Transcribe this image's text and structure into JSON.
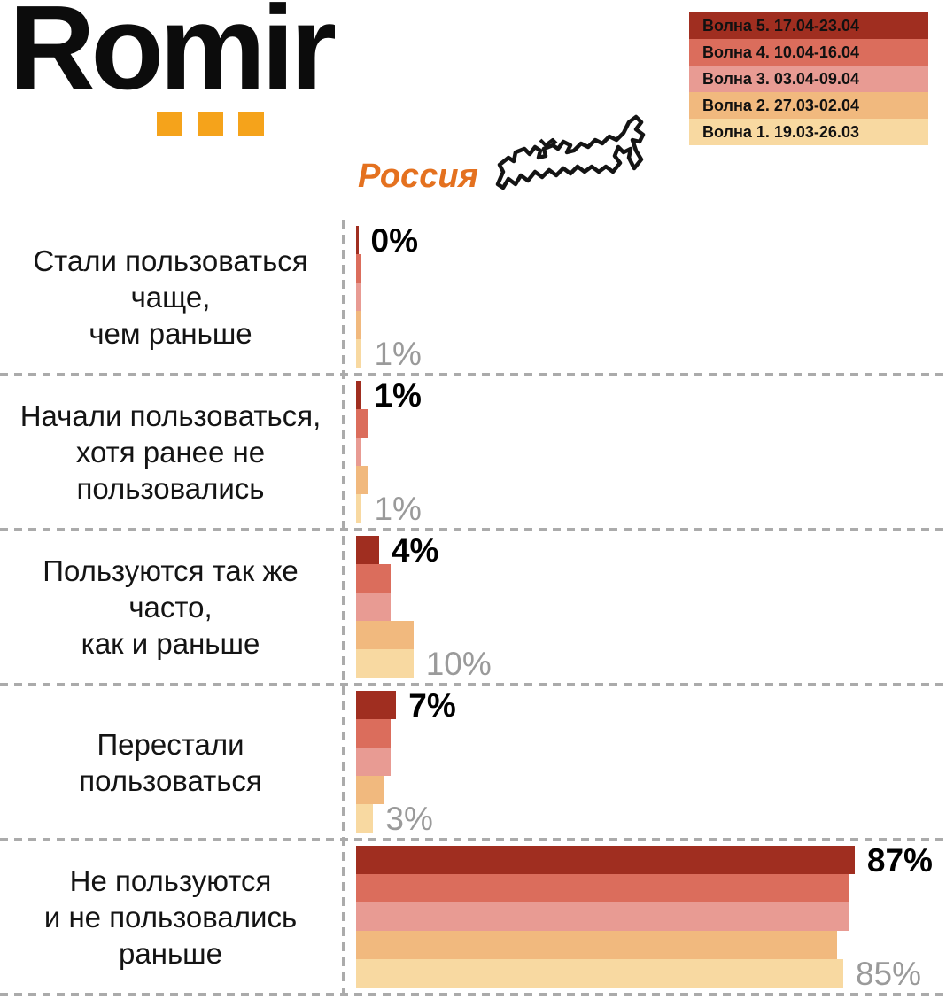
{
  "logo": {
    "text": "Romir",
    "dots_color": "#f5a31b"
  },
  "region_label": "Россия",
  "legend": {
    "items": [
      {
        "label": "Волна 5. 17.04-23.04",
        "color": "#a02e20"
      },
      {
        "label": "Волна 4. 10.04-16.04",
        "color": "#db6d5c"
      },
      {
        "label": "Волна 3. 03.04-09.04",
        "color": "#e89b93"
      },
      {
        "label": "Волна 2. 27.03-02.04",
        "color": "#f1b97e"
      },
      {
        "label": "Волна 1. 19.03-26.03",
        "color": "#f8d9a1"
      }
    ]
  },
  "chart_data": {
    "type": "bar",
    "orientation": "horizontal",
    "unit": "%",
    "xlim": [
      0,
      100
    ],
    "series_top_to_bottom": [
      {
        "name": "Волна 5. 17.04-23.04",
        "color": "#a02e20"
      },
      {
        "name": "Волна 4. 10.04-16.04",
        "color": "#db6d5c"
      },
      {
        "name": "Волна 3. 03.04-09.04",
        "color": "#e89b93"
      },
      {
        "name": "Волна 2. 27.03-02.04",
        "color": "#f1b97e"
      },
      {
        "name": "Волна 1. 19.03-26.03",
        "color": "#f8d9a1"
      }
    ],
    "groups": [
      {
        "category_lines": [
          "Стали пользоваться",
          "чаще,",
          "чем раньше"
        ],
        "values": [
          0,
          1,
          1,
          1,
          1
        ],
        "top_value_label": "0%",
        "bottom_value_label": "1%"
      },
      {
        "category_lines": [
          "Начали пользоваться,",
          "хотя ранее не",
          "пользовались"
        ],
        "values": [
          1,
          2,
          1,
          2,
          1
        ],
        "top_value_label": "1%",
        "bottom_value_label": "1%"
      },
      {
        "category_lines": [
          "Пользуются так же",
          "часто,",
          "как и раньше"
        ],
        "values": [
          4,
          6,
          6,
          10,
          10
        ],
        "top_value_label": "4%",
        "bottom_value_label": "10%"
      },
      {
        "category_lines": [
          "Перестали",
          "пользоваться"
        ],
        "values": [
          7,
          6,
          6,
          5,
          3
        ],
        "top_value_label": "7%",
        "bottom_value_label": "3%"
      },
      {
        "category_lines": [
          "Не пользуются",
          "и не пользовались",
          "раньше"
        ],
        "values": [
          87,
          86,
          86,
          84,
          85
        ],
        "top_value_label": "87%",
        "bottom_value_label": "85%"
      }
    ],
    "value_label_note": "bold top label = Волна 5, gray bottom label = Волна 1"
  }
}
